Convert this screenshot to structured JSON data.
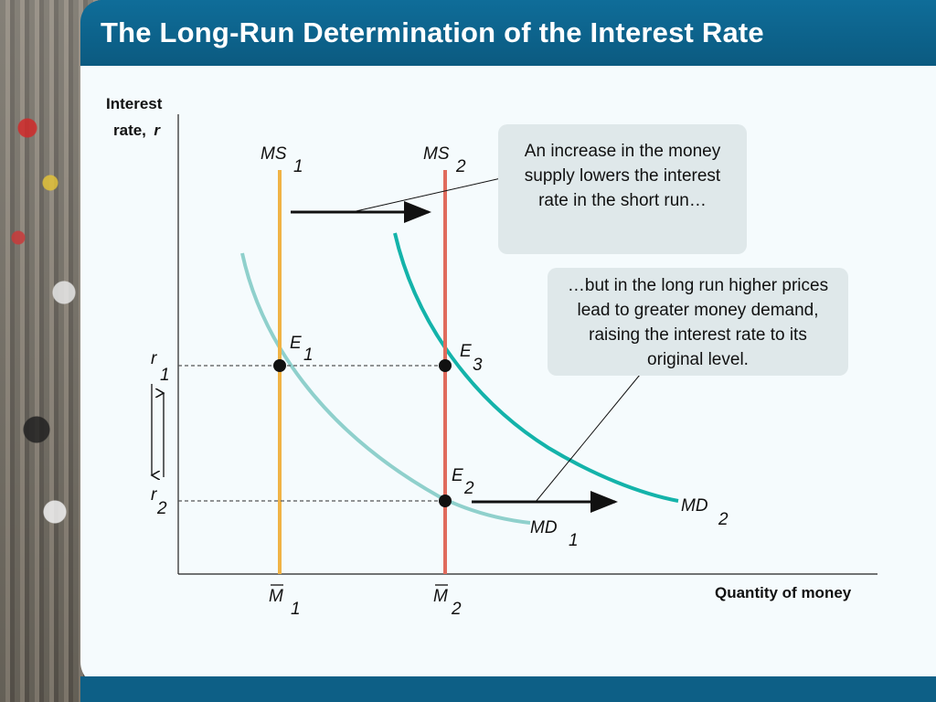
{
  "slide": {
    "title": "The Long-Run Determination of the Interest Rate"
  },
  "axes": {
    "y_label_line1": "Interest",
    "y_label_line2": "rate,",
    "y_label_symbol": "r",
    "x_label": "Quantity of money"
  },
  "curves": {
    "ms1": {
      "name": "MS",
      "sub": "1",
      "color": "#f0b345"
    },
    "ms2": {
      "name": "MS",
      "sub": "2",
      "color": "#e06b5d"
    },
    "md1": {
      "name": "MD",
      "sub": "1",
      "color": "#8fd0cc"
    },
    "md2": {
      "name": "MD",
      "sub": "2",
      "color": "#14b3aa"
    }
  },
  "points": {
    "e1": {
      "name": "E",
      "sub": "1"
    },
    "e2": {
      "name": "E",
      "sub": "2"
    },
    "e3": {
      "name": "E",
      "sub": "3"
    }
  },
  "y_ticks": {
    "r1": {
      "name": "r",
      "sub": "1"
    },
    "r2": {
      "name": "r",
      "sub": "2"
    }
  },
  "x_ticks": {
    "m1": {
      "name": "M",
      "sub": "1"
    },
    "m2": {
      "name": "M",
      "sub": "2"
    }
  },
  "callouts": {
    "short_run": "An increase in the money supply lowers the interest rate in the short run…",
    "long_run": "…but in the long run higher prices lead to greater money demand, raising the interest rate to its original level."
  }
}
